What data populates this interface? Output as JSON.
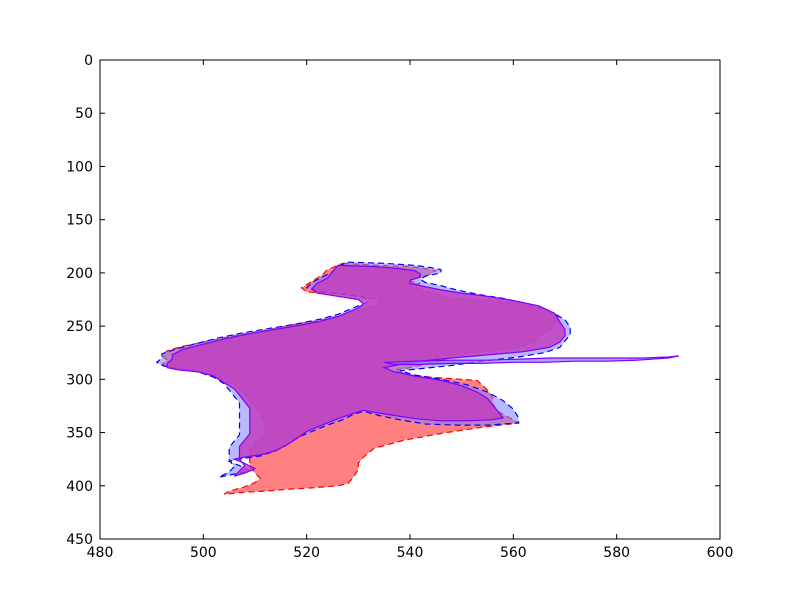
{
  "chart_data": {
    "type": "area",
    "title": "",
    "xlabel": "",
    "ylabel": "",
    "xlim": [
      480,
      600
    ],
    "ylim": [
      450,
      0
    ],
    "y_inverted": true,
    "xticks": [
      480,
      500,
      520,
      540,
      560,
      580,
      600
    ],
    "yticks": [
      0,
      50,
      100,
      150,
      200,
      250,
      300,
      350,
      400,
      450
    ],
    "grid": false,
    "legend": "none",
    "colors": {
      "red_fill": "#ff8080",
      "blue_fill": "#8080ff",
      "overlap": "#bf40bf",
      "red_line": "#ff0000",
      "blue_line": "#0000ff",
      "purple_line": "#8000ff"
    },
    "series": [
      {
        "style": "red-filled-dashed",
        "points": [
          [
            527,
            191
          ],
          [
            534,
            193
          ],
          [
            540,
            194
          ],
          [
            543,
            196
          ],
          [
            545,
            198
          ],
          [
            544,
            201
          ],
          [
            543,
            203
          ],
          [
            541,
            205
          ],
          [
            540,
            208
          ],
          [
            542,
            210
          ],
          [
            540,
            213
          ],
          [
            543,
            217
          ],
          [
            548,
            224
          ],
          [
            556,
            226
          ],
          [
            561,
            229
          ],
          [
            566,
            234
          ],
          [
            569,
            241
          ],
          [
            568,
            248
          ],
          [
            567,
            254
          ],
          [
            565,
            259
          ],
          [
            564,
            265
          ],
          [
            560,
            271
          ],
          [
            552,
            275
          ],
          [
            545,
            278
          ],
          [
            547,
            282
          ],
          [
            543,
            286
          ],
          [
            539,
            290
          ],
          [
            537,
            291
          ],
          [
            540,
            296
          ],
          [
            544,
            298
          ],
          [
            553,
            301
          ],
          [
            555,
            310
          ],
          [
            556,
            317
          ],
          [
            556,
            323
          ],
          [
            557,
            330
          ],
          [
            560,
            338
          ],
          [
            561,
            341
          ],
          [
            554,
            345
          ],
          [
            547,
            350
          ],
          [
            539,
            357
          ],
          [
            533,
            365
          ],
          [
            531,
            373
          ],
          [
            530,
            379
          ],
          [
            530,
            385
          ],
          [
            529,
            392
          ],
          [
            528,
            398
          ],
          [
            526,
            400
          ],
          [
            521,
            402
          ],
          [
            517,
            403
          ],
          [
            512,
            405
          ],
          [
            508,
            406
          ],
          [
            504,
            408
          ],
          [
            505,
            405
          ],
          [
            508,
            401
          ],
          [
            510,
            397
          ],
          [
            511,
            393
          ],
          [
            510,
            388
          ],
          [
            509,
            382
          ],
          [
            509,
            377
          ],
          [
            509,
            372
          ],
          [
            509,
            366
          ],
          [
            510,
            359
          ],
          [
            512,
            353
          ],
          [
            512,
            346
          ],
          [
            512,
            339
          ],
          [
            511,
            333
          ],
          [
            510,
            326
          ],
          [
            509,
            320
          ],
          [
            508,
            313
          ],
          [
            506,
            305
          ],
          [
            503,
            298
          ],
          [
            499,
            292
          ],
          [
            494,
            289
          ],
          [
            492,
            286
          ],
          [
            493,
            282
          ],
          [
            492,
            278
          ],
          [
            493,
            273
          ],
          [
            496,
            269
          ],
          [
            501,
            264
          ],
          [
            506,
            259
          ],
          [
            512,
            254
          ],
          [
            517,
            249
          ],
          [
            522,
            245
          ],
          [
            526,
            241
          ],
          [
            529,
            237
          ],
          [
            532,
            233
          ],
          [
            534,
            229
          ],
          [
            534,
            225
          ],
          [
            530,
            222
          ],
          [
            524,
            219
          ],
          [
            520,
            218
          ],
          [
            519,
            214
          ],
          [
            521,
            208
          ],
          [
            523,
            202
          ],
          [
            524,
            197
          ]
        ]
      },
      {
        "style": "blue-filled-dashed",
        "points": [
          [
            528,
            190
          ],
          [
            535,
            191
          ],
          [
            541,
            193
          ],
          [
            544,
            195
          ],
          [
            546,
            197
          ],
          [
            546,
            200
          ],
          [
            543,
            203
          ],
          [
            542,
            206
          ],
          [
            543,
            209
          ],
          [
            546,
            212
          ],
          [
            549,
            216
          ],
          [
            553,
            220
          ],
          [
            558,
            224
          ],
          [
            563,
            229
          ],
          [
            567,
            236
          ],
          [
            570,
            244
          ],
          [
            571,
            251
          ],
          [
            571,
            258
          ],
          [
            570,
            264
          ],
          [
            569,
            270
          ],
          [
            566,
            275
          ],
          [
            561,
            279
          ],
          [
            554,
            283
          ],
          [
            548,
            287
          ],
          [
            542,
            290
          ],
          [
            538,
            292
          ],
          [
            541,
            296
          ],
          [
            546,
            300
          ],
          [
            551,
            305
          ],
          [
            555,
            312
          ],
          [
            558,
            320
          ],
          [
            560,
            328
          ],
          [
            561,
            336
          ],
          [
            561,
            341
          ],
          [
            555,
            343
          ],
          [
            549,
            343
          ],
          [
            543,
            342
          ],
          [
            538,
            338
          ],
          [
            534,
            334
          ],
          [
            531,
            330
          ],
          [
            529,
            333
          ],
          [
            527,
            338
          ],
          [
            524,
            343
          ],
          [
            521,
            349
          ],
          [
            518,
            355
          ],
          [
            516,
            362
          ],
          [
            514,
            367
          ],
          [
            511,
            372
          ],
          [
            507,
            375
          ],
          [
            505,
            377
          ],
          [
            507,
            381
          ],
          [
            509,
            386
          ],
          [
            506,
            389
          ],
          [
            503,
            392
          ],
          [
            505,
            387
          ],
          [
            506,
            382
          ],
          [
            505,
            376
          ],
          [
            505,
            370
          ],
          [
            505,
            364
          ],
          [
            506,
            358
          ],
          [
            507,
            352
          ],
          [
            507,
            346
          ],
          [
            507,
            340
          ],
          [
            507,
            334
          ],
          [
            507,
            328
          ],
          [
            507,
            322
          ],
          [
            506,
            316
          ],
          [
            505,
            310
          ],
          [
            504,
            304
          ],
          [
            502,
            298
          ],
          [
            499,
            293
          ],
          [
            495,
            290
          ],
          [
            492,
            287
          ],
          [
            491,
            284
          ],
          [
            492,
            280
          ],
          [
            492,
            276
          ],
          [
            495,
            271
          ],
          [
            499,
            266
          ],
          [
            503,
            261
          ],
          [
            508,
            256
          ],
          [
            513,
            252
          ],
          [
            518,
            248
          ],
          [
            523,
            243
          ],
          [
            526,
            239
          ],
          [
            528,
            235
          ],
          [
            530,
            231
          ],
          [
            532,
            227
          ],
          [
            531,
            223
          ],
          [
            527,
            220
          ],
          [
            522,
            217
          ],
          [
            520,
            214
          ],
          [
            521,
            209
          ],
          [
            523,
            204
          ],
          [
            525,
            199
          ],
          [
            526,
            194
          ]
        ]
      },
      {
        "style": "purple-outline",
        "points": [
          [
            526,
            193
          ],
          [
            533,
            194
          ],
          [
            538,
            196
          ],
          [
            541,
            198
          ],
          [
            542,
            201
          ],
          [
            542,
            204
          ],
          [
            540,
            207
          ],
          [
            540,
            210
          ],
          [
            543,
            213
          ],
          [
            546,
            216
          ],
          [
            550,
            219
          ],
          [
            555,
            222
          ],
          [
            560,
            226
          ],
          [
            565,
            231
          ],
          [
            568,
            238
          ],
          [
            569,
            246
          ],
          [
            570,
            253
          ],
          [
            570,
            259
          ],
          [
            569,
            265
          ],
          [
            567,
            270
          ],
          [
            562,
            274
          ],
          [
            555,
            277
          ],
          [
            548,
            280
          ],
          [
            542,
            283
          ],
          [
            538,
            286
          ],
          [
            535,
            289
          ],
          [
            537,
            293
          ],
          [
            541,
            297
          ],
          [
            546,
            301
          ],
          [
            550,
            306
          ],
          [
            553,
            312
          ],
          [
            555,
            318
          ],
          [
            556,
            324
          ],
          [
            557,
            330
          ],
          [
            558,
            336
          ],
          [
            556,
            338
          ],
          [
            551,
            339
          ],
          [
            546,
            339
          ],
          [
            541,
            337
          ],
          [
            537,
            334
          ],
          [
            533,
            331
          ],
          [
            531,
            329
          ],
          [
            529,
            332
          ],
          [
            526,
            337
          ],
          [
            523,
            343
          ],
          [
            520,
            349
          ],
          [
            518,
            356
          ],
          [
            516,
            362
          ],
          [
            514,
            367
          ],
          [
            511,
            371
          ],
          [
            508,
            373
          ],
          [
            506,
            375
          ],
          [
            508,
            379
          ],
          [
            510,
            384
          ],
          [
            508,
            388
          ],
          [
            506,
            391
          ],
          [
            507,
            386
          ],
          [
            508,
            381
          ],
          [
            507,
            375
          ],
          [
            507,
            369
          ],
          [
            507,
            363
          ],
          [
            508,
            357
          ],
          [
            509,
            351
          ],
          [
            509,
            345
          ],
          [
            509,
            339
          ],
          [
            509,
            333
          ],
          [
            509,
            327
          ],
          [
            508,
            321
          ],
          [
            507,
            315
          ],
          [
            506,
            309
          ],
          [
            504,
            303
          ],
          [
            502,
            297
          ],
          [
            499,
            293
          ],
          [
            495,
            291
          ],
          [
            493,
            289
          ],
          [
            493,
            285
          ],
          [
            494,
            281
          ],
          [
            494,
            277
          ],
          [
            496,
            272
          ],
          [
            500,
            267
          ],
          [
            504,
            262
          ],
          [
            509,
            257
          ],
          [
            514,
            253
          ],
          [
            519,
            249
          ],
          [
            523,
            245
          ],
          [
            526,
            241
          ],
          [
            528,
            237
          ],
          [
            530,
            233
          ],
          [
            531,
            229
          ],
          [
            530,
            225
          ],
          [
            526,
            222
          ],
          [
            522,
            219
          ],
          [
            521,
            215
          ],
          [
            522,
            210
          ],
          [
            524,
            205
          ],
          [
            525,
            199
          ]
        ]
      },
      {
        "style": "purple-line",
        "points": [
          [
            535,
            284
          ],
          [
            541,
            283
          ],
          [
            548,
            282
          ],
          [
            555,
            282
          ],
          [
            561,
            281
          ],
          [
            567,
            280
          ],
          [
            573,
            280
          ],
          [
            579,
            280
          ],
          [
            585,
            280
          ],
          [
            590,
            279
          ],
          [
            592,
            278
          ],
          [
            590,
            280
          ],
          [
            584,
            282
          ],
          [
            578,
            283
          ],
          [
            572,
            283
          ],
          [
            566,
            284
          ],
          [
            560,
            284
          ],
          [
            554,
            285
          ],
          [
            548,
            285
          ],
          [
            542,
            286
          ],
          [
            537,
            286
          ]
        ]
      }
    ]
  }
}
